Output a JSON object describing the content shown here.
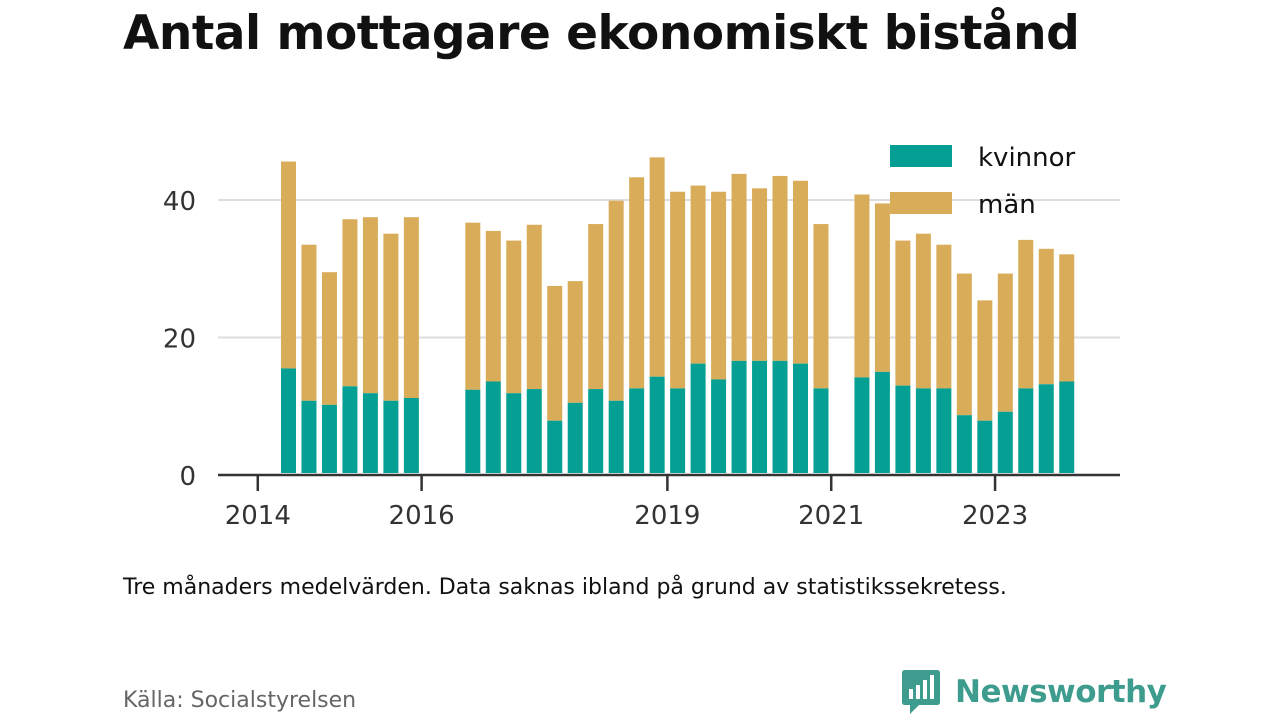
{
  "title": "Antal mottagare ekonomiskt bistånd",
  "note": "Tre månaders medelvärden. Data saknas ibland på grund av statistikssekretess.",
  "source": "Källa: Socialstyrelsen",
  "brand": {
    "name": "Newsworthy",
    "icon": "newsworthy-logo-icon"
  },
  "colors": {
    "kvinnor": "#05a093",
    "man": "#d9ac59",
    "axis": "#333333",
    "grid": "#dddddd"
  },
  "chart_data": {
    "type": "bar",
    "stacked": true,
    "ylim": [
      0,
      50
    ],
    "yticks": [
      0,
      20,
      40
    ],
    "xticks": [
      "2014",
      "2016",
      "2019",
      "2021",
      "2023"
    ],
    "grid": "horizontal",
    "legend_position": "top-right",
    "categories": [
      "2014 Q2",
      "2014 Q3",
      "2014 Q4",
      "2015 Q1",
      "2015 Q2",
      "2015 Q3",
      "2015 Q4",
      "2016 Q1",
      "2016 Q2",
      "2016 Q3",
      "2016 Q4",
      "2017 Q1",
      "2017 Q2",
      "2017 Q3",
      "2017 Q4",
      "2018 Q1",
      "2018 Q2",
      "2018 Q3",
      "2018 Q4",
      "2019 Q1",
      "2019 Q2",
      "2019 Q3",
      "2019 Q4",
      "2020 Q1",
      "2020 Q2",
      "2020 Q3",
      "2020 Q4",
      "2021 Q1",
      "2021 Q2",
      "2021 Q3",
      "2021 Q4",
      "2022 Q1",
      "2022 Q2",
      "2022 Q3",
      "2022 Q4",
      "2023 Q1",
      "2023 Q2",
      "2023 Q3",
      "2023 Q4",
      "2024 Q1"
    ],
    "series": [
      {
        "name": "kvinnor",
        "values": [
          15.5,
          10.8,
          10.2,
          12.9,
          11.9,
          10.8,
          11.2,
          null,
          null,
          12.4,
          13.6,
          11.9,
          12.5,
          7.9,
          10.5,
          12.5,
          10.8,
          12.6,
          14.3,
          12.6,
          16.2,
          13.9,
          16.6,
          16.6,
          16.6,
          16.2,
          12.6,
          null,
          14.2,
          15.0,
          13.0,
          12.6,
          12.6,
          8.7,
          7.9,
          9.2,
          12.6,
          13.2,
          13.6,
          null
        ]
      },
      {
        "name": "män",
        "values": [
          30.1,
          22.7,
          19.3,
          24.3,
          25.6,
          24.3,
          26.3,
          null,
          null,
          24.3,
          21.9,
          22.2,
          23.9,
          19.6,
          17.7,
          24.0,
          29.1,
          30.7,
          31.9,
          28.6,
          25.9,
          27.3,
          27.2,
          25.1,
          26.9,
          26.6,
          23.9,
          null,
          26.6,
          24.5,
          21.1,
          22.5,
          20.9,
          20.6,
          17.5,
          20.1,
          21.6,
          19.7,
          18.5,
          null
        ]
      }
    ]
  }
}
